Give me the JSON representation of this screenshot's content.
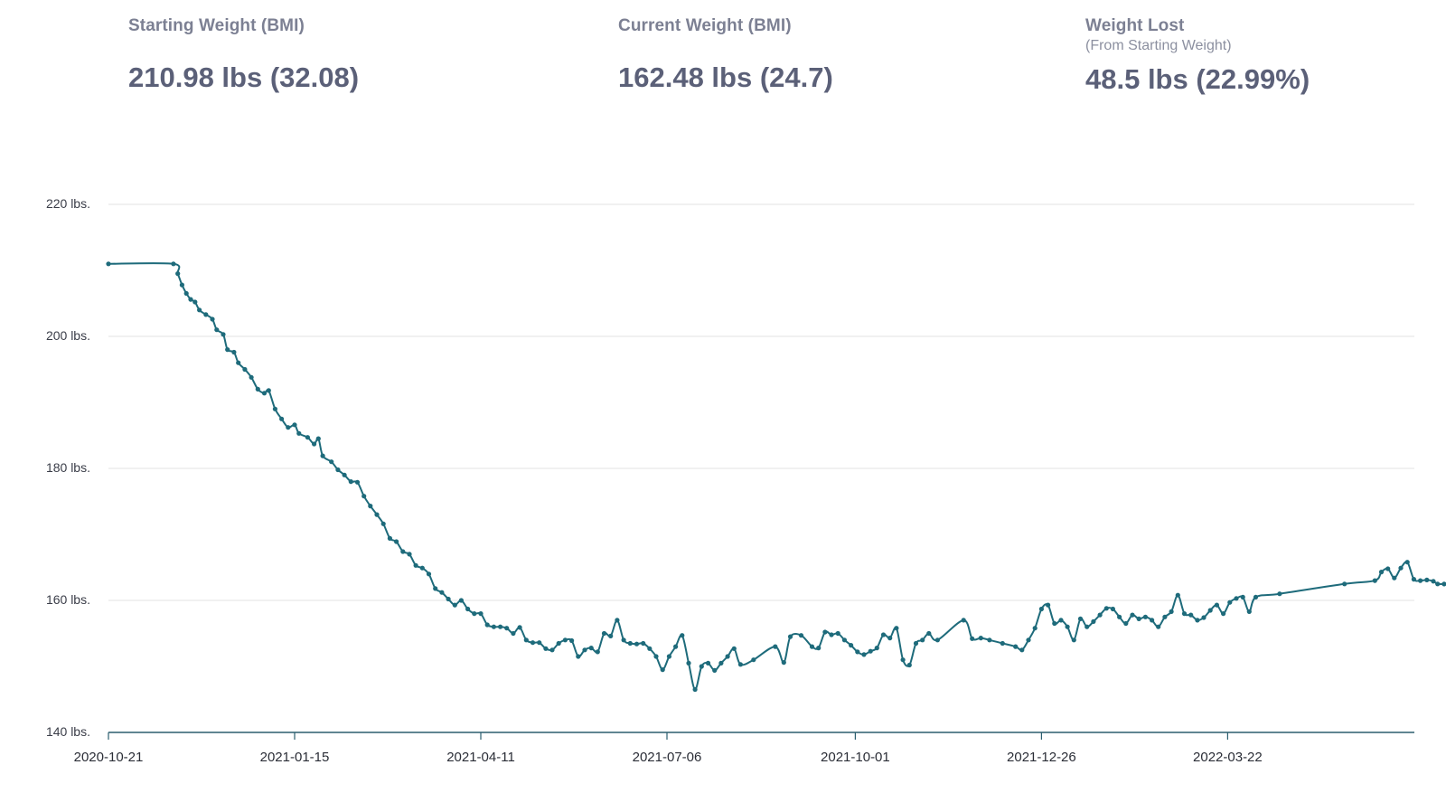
{
  "stats": {
    "starting": {
      "label": "Starting Weight (BMI)",
      "value": "210.98 lbs (32.08)"
    },
    "current": {
      "label": "Current Weight (BMI)",
      "value": "162.48 lbs (24.7)"
    },
    "lost": {
      "label": "Weight Lost",
      "sublabel": "(From Starting Weight)",
      "value": "48.5 lbs (22.99%)"
    }
  },
  "colors": {
    "line": "#1e6b7b",
    "grid": "#e3e3e3",
    "axis": "#2c5f6f"
  },
  "chart_data": {
    "type": "line",
    "title": "",
    "xlabel": "",
    "ylabel": "",
    "ylim": [
      140,
      220
    ],
    "y_ticks": [
      220,
      200,
      180,
      160,
      140
    ],
    "y_tick_labels": [
      "220 lbs.",
      "200 lbs.",
      "180 lbs.",
      "160 lbs.",
      "140 lbs."
    ],
    "x_tick_labels": [
      "2020-10-21",
      "2021-01-15",
      "2021-04-11",
      "2021-07-06",
      "2021-10-01",
      "2021-12-26",
      "2022-03-22"
    ],
    "x_range": [
      "2020-10-21",
      "2022-06-30"
    ],
    "grid": true,
    "series": [
      {
        "name": "",
        "points": [
          [
            "2020-10-21",
            210.98
          ],
          [
            "2020-11-20",
            210.98
          ],
          [
            "2020-11-22",
            209.5
          ],
          [
            "2020-11-24",
            207.8
          ],
          [
            "2020-11-26",
            206.5
          ],
          [
            "2020-11-28",
            205.6
          ],
          [
            "2020-11-30",
            205.2
          ],
          [
            "2020-12-02",
            204.0
          ],
          [
            "2020-12-05",
            203.3
          ],
          [
            "2020-12-08",
            202.6
          ],
          [
            "2020-12-10",
            201.0
          ],
          [
            "2020-12-13",
            200.3
          ],
          [
            "2020-12-15",
            198.0
          ],
          [
            "2020-12-18",
            197.6
          ],
          [
            "2020-12-20",
            196.0
          ],
          [
            "2020-12-23",
            195.0
          ],
          [
            "2020-12-26",
            193.8
          ],
          [
            "2020-12-29",
            192.0
          ],
          [
            "2021-01-01",
            191.4
          ],
          [
            "2021-01-03",
            191.8
          ],
          [
            "2021-01-06",
            189.0
          ],
          [
            "2021-01-09",
            187.5
          ],
          [
            "2021-01-12",
            186.2
          ],
          [
            "2021-01-15",
            186.6
          ],
          [
            "2021-01-17",
            185.3
          ],
          [
            "2021-01-21",
            184.7
          ],
          [
            "2021-01-24",
            183.7
          ],
          [
            "2021-01-26",
            184.5
          ],
          [
            "2021-01-28",
            181.9
          ],
          [
            "2021-02-01",
            181.0
          ],
          [
            "2021-02-04",
            179.8
          ],
          [
            "2021-02-07",
            179.0
          ],
          [
            "2021-02-10",
            178.0
          ],
          [
            "2021-02-13",
            177.9
          ],
          [
            "2021-02-16",
            175.8
          ],
          [
            "2021-02-19",
            174.3
          ],
          [
            "2021-02-22",
            173.0
          ],
          [
            "2021-02-25",
            171.6
          ],
          [
            "2021-02-28",
            169.4
          ],
          [
            "2021-03-03",
            168.9
          ],
          [
            "2021-03-06",
            167.4
          ],
          [
            "2021-03-09",
            167.0
          ],
          [
            "2021-03-12",
            165.3
          ],
          [
            "2021-03-15",
            164.9
          ],
          [
            "2021-03-18",
            164.0
          ],
          [
            "2021-03-21",
            161.8
          ],
          [
            "2021-03-24",
            161.2
          ],
          [
            "2021-03-27",
            160.2
          ],
          [
            "2021-03-30",
            159.3
          ],
          [
            "2021-04-02",
            160.0
          ],
          [
            "2021-04-05",
            158.7
          ],
          [
            "2021-04-08",
            158.0
          ],
          [
            "2021-04-11",
            158.0
          ],
          [
            "2021-04-14",
            156.3
          ],
          [
            "2021-04-17",
            156.0
          ],
          [
            "2021-04-20",
            156.0
          ],
          [
            "2021-04-23",
            155.8
          ],
          [
            "2021-04-26",
            155.0
          ],
          [
            "2021-04-29",
            155.9
          ],
          [
            "2021-05-02",
            154.0
          ],
          [
            "2021-05-05",
            153.6
          ],
          [
            "2021-05-08",
            153.6
          ],
          [
            "2021-05-11",
            152.7
          ],
          [
            "2021-05-14",
            152.5
          ],
          [
            "2021-05-17",
            153.5
          ],
          [
            "2021-05-20",
            154.0
          ],
          [
            "2021-05-23",
            153.9
          ],
          [
            "2021-05-26",
            151.5
          ],
          [
            "2021-05-29",
            152.5
          ],
          [
            "2021-06-01",
            152.8
          ],
          [
            "2021-06-04",
            152.2
          ],
          [
            "2021-06-07",
            155.0
          ],
          [
            "2021-06-10",
            154.6
          ],
          [
            "2021-06-13",
            157.0
          ],
          [
            "2021-06-16",
            154.0
          ],
          [
            "2021-06-19",
            153.5
          ],
          [
            "2021-06-22",
            153.4
          ],
          [
            "2021-06-25",
            153.5
          ],
          [
            "2021-06-28",
            152.7
          ],
          [
            "2021-07-01",
            151.5
          ],
          [
            "2021-07-04",
            149.5
          ],
          [
            "2021-07-07",
            151.5
          ],
          [
            "2021-07-10",
            153.0
          ],
          [
            "2021-07-13",
            154.7
          ],
          [
            "2021-07-16",
            150.5
          ],
          [
            "2021-07-19",
            146.5
          ],
          [
            "2021-07-22",
            150.0
          ],
          [
            "2021-07-25",
            150.5
          ],
          [
            "2021-07-28",
            149.4
          ],
          [
            "2021-07-31",
            150.5
          ],
          [
            "2021-08-03",
            151.5
          ],
          [
            "2021-08-06",
            152.7
          ],
          [
            "2021-08-09",
            150.3
          ],
          [
            "2021-08-15",
            151.0
          ],
          [
            "2021-08-25",
            153.0
          ],
          [
            "2021-08-29",
            150.6
          ],
          [
            "2021-09-01",
            154.5
          ],
          [
            "2021-09-06",
            154.7
          ],
          [
            "2021-09-11",
            153.0
          ],
          [
            "2021-09-14",
            152.8
          ],
          [
            "2021-09-17",
            155.2
          ],
          [
            "2021-09-20",
            154.8
          ],
          [
            "2021-09-23",
            155.0
          ],
          [
            "2021-09-26",
            154.0
          ],
          [
            "2021-09-29",
            153.2
          ],
          [
            "2021-10-02",
            152.2
          ],
          [
            "2021-10-05",
            151.8
          ],
          [
            "2021-10-08",
            152.3
          ],
          [
            "2021-10-11",
            152.8
          ],
          [
            "2021-10-14",
            154.8
          ],
          [
            "2021-10-17",
            154.3
          ],
          [
            "2021-10-20",
            155.8
          ],
          [
            "2021-10-23",
            151.0
          ],
          [
            "2021-10-26",
            150.2
          ],
          [
            "2021-10-29",
            153.5
          ],
          [
            "2021-11-01",
            154.0
          ],
          [
            "2021-11-04",
            155.0
          ],
          [
            "2021-11-08",
            154.0
          ],
          [
            "2021-11-20",
            157.0
          ],
          [
            "2021-11-24",
            154.2
          ],
          [
            "2021-11-28",
            154.3
          ],
          [
            "2021-12-02",
            154.0
          ],
          [
            "2021-12-08",
            153.5
          ],
          [
            "2021-12-14",
            153.0
          ],
          [
            "2021-12-17",
            152.5
          ],
          [
            "2021-12-20",
            154.0
          ],
          [
            "2021-12-23",
            155.8
          ],
          [
            "2021-12-26",
            158.7
          ],
          [
            "2021-12-29",
            159.3
          ],
          [
            "2022-01-01",
            156.5
          ],
          [
            "2022-01-04",
            157.0
          ],
          [
            "2022-01-07",
            156.0
          ],
          [
            "2022-01-10",
            154.0
          ],
          [
            "2022-01-13",
            157.2
          ],
          [
            "2022-01-16",
            156.0
          ],
          [
            "2022-01-19",
            156.8
          ],
          [
            "2022-01-22",
            157.8
          ],
          [
            "2022-01-25",
            158.8
          ],
          [
            "2022-01-28",
            158.7
          ],
          [
            "2022-01-31",
            157.5
          ],
          [
            "2022-02-03",
            156.5
          ],
          [
            "2022-02-06",
            157.8
          ],
          [
            "2022-02-09",
            157.2
          ],
          [
            "2022-02-12",
            157.5
          ],
          [
            "2022-02-15",
            157.0
          ],
          [
            "2022-02-18",
            156.0
          ],
          [
            "2022-02-21",
            157.5
          ],
          [
            "2022-02-24",
            158.3
          ],
          [
            "2022-02-27",
            160.8
          ],
          [
            "2022-03-02",
            158.0
          ],
          [
            "2022-03-05",
            157.8
          ],
          [
            "2022-03-08",
            157.0
          ],
          [
            "2022-03-11",
            157.4
          ],
          [
            "2022-03-14",
            158.5
          ],
          [
            "2022-03-17",
            159.3
          ],
          [
            "2022-03-20",
            158.0
          ],
          [
            "2022-03-23",
            159.7
          ],
          [
            "2022-03-26",
            160.3
          ],
          [
            "2022-03-29",
            160.5
          ],
          [
            "2022-04-01",
            158.3
          ],
          [
            "2022-04-04",
            160.5
          ],
          [
            "2022-04-15",
            161.0
          ],
          [
            "2022-05-15",
            162.5
          ],
          [
            "2022-05-29",
            163.0
          ],
          [
            "2022-06-01",
            164.3
          ],
          [
            "2022-06-04",
            164.8
          ],
          [
            "2022-06-07",
            163.4
          ],
          [
            "2022-06-10",
            164.9
          ],
          [
            "2022-06-13",
            165.8
          ],
          [
            "2022-06-16",
            163.2
          ],
          [
            "2022-06-19",
            163.0
          ],
          [
            "2022-06-22",
            163.1
          ],
          [
            "2022-06-25",
            162.9
          ],
          [
            "2022-06-27",
            162.5
          ],
          [
            "2022-06-30",
            162.48
          ]
        ]
      }
    ]
  }
}
